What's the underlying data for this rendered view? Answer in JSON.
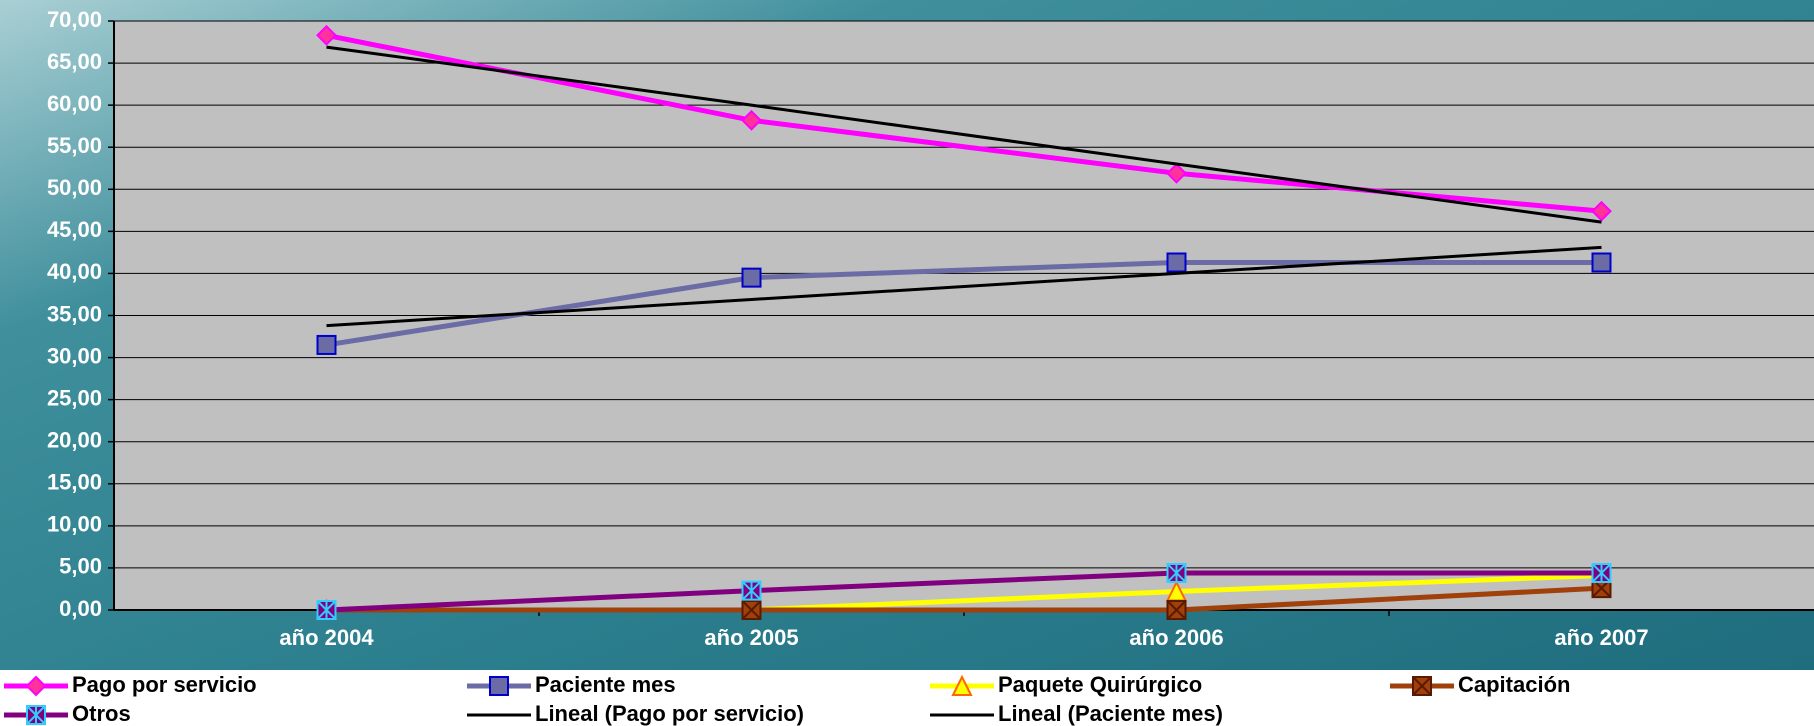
{
  "chart_data": {
    "type": "line",
    "categories": [
      "año 2004",
      "año 2005",
      "año 2006",
      "año 2007"
    ],
    "ylim": [
      0,
      70
    ],
    "yticks": [
      {
        "value": 0,
        "label": "0,00"
      },
      {
        "value": 5,
        "label": "5,00"
      },
      {
        "value": 10,
        "label": "10,00"
      },
      {
        "value": 15,
        "label": "15,00"
      },
      {
        "value": 20,
        "label": "20,00"
      },
      {
        "value": 25,
        "label": "25,00"
      },
      {
        "value": 30,
        "label": "30,00"
      },
      {
        "value": 35,
        "label": "35,00"
      },
      {
        "value": 40,
        "label": "40,00"
      },
      {
        "value": 45,
        "label": "45,00"
      },
      {
        "value": 50,
        "label": "50,00"
      },
      {
        "value": 55,
        "label": "55,00"
      },
      {
        "value": 60,
        "label": "60,00"
      },
      {
        "value": 65,
        "label": "65,00"
      },
      {
        "value": 70,
        "label": "70,00"
      }
    ],
    "grid": true,
    "legend": "bottom",
    "series": [
      {
        "name": "Pago por servicio",
        "color": "#ff00ff",
        "marker": "diamond",
        "values": [
          68.3,
          58.2,
          51.9,
          47.4
        ]
      },
      {
        "name": "Paciente mes",
        "color": "#6b6ba6",
        "marker": "square",
        "values": [
          31.5,
          39.5,
          41.3,
          41.3
        ]
      },
      {
        "name": "Paquete Quirúrgico",
        "color": "#ffff00",
        "marker": "triangle",
        "values": [
          0,
          0,
          2.2,
          4.1
        ]
      },
      {
        "name": "Capitación",
        "color": "#a0400a",
        "marker": "x",
        "values": [
          0,
          0,
          0,
          2.6
        ]
      },
      {
        "name": "Otros",
        "color": "#800080",
        "marker": "asterisk",
        "values": [
          0,
          2.3,
          4.4,
          4.4
        ]
      },
      {
        "name": "Lineal (Pago por servicio)",
        "color": "#000000",
        "marker": "none",
        "values": [
          66.9,
          60.0,
          53.0,
          46.1
        ]
      },
      {
        "name": "Lineal (Paciente mes)",
        "color": "#000000",
        "marker": "none",
        "values": [
          33.8,
          36.9,
          40.0,
          43.1
        ]
      }
    ]
  }
}
